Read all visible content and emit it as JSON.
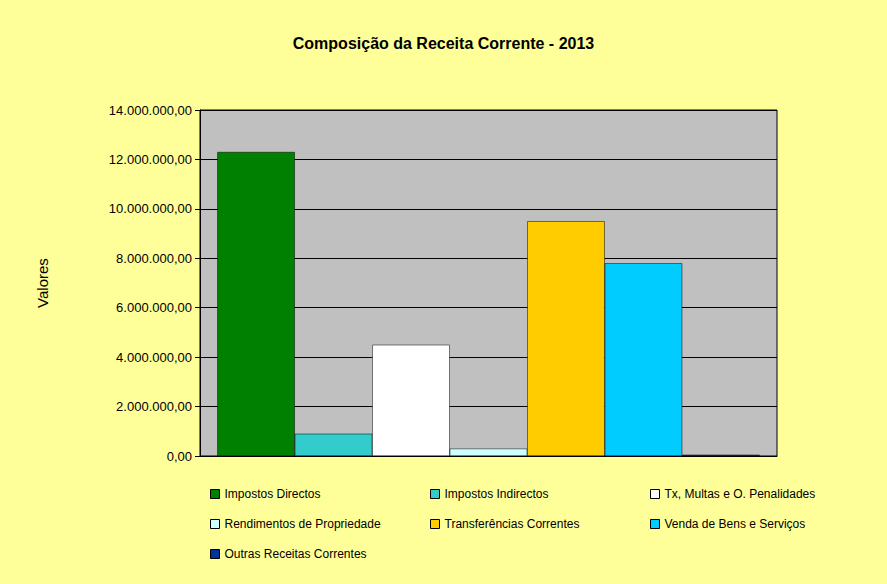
{
  "chart_data": {
    "type": "bar",
    "title": "Composição da Receita Corrente - 2013",
    "y_label": "Valores",
    "categories": [
      null
    ],
    "series": [
      {
        "name": "Impostos Directos",
        "color": "#008000",
        "values": [
          12300000
        ]
      },
      {
        "name": "Impostos Indirectos",
        "color": "#33CCCC",
        "values": [
          900000
        ]
      },
      {
        "name": "Tx, Multas e O. Penalidades",
        "color": "#FFFFFF",
        "values": [
          4500000
        ]
      },
      {
        "name": "Rendimentos de Propriedade",
        "color": "#CCFFFF",
        "values": [
          300000
        ]
      },
      {
        "name": "Transferências Correntes",
        "color": "#FFCC00",
        "values": [
          9500000
        ]
      },
      {
        "name": "Venda de Bens e Serviços",
        "color": "#00CCFF",
        "values": [
          7800000
        ]
      },
      {
        "name": "Outras Receitas Correntes",
        "color": "#003399",
        "values": [
          50000
        ]
      }
    ],
    "ylim": [
      0,
      14000000
    ],
    "yticks": [
      {
        "value": 0,
        "label": "0,00"
      },
      {
        "value": 2000000,
        "label": "2.000.000,00"
      },
      {
        "value": 4000000,
        "label": "4.000.000,00"
      },
      {
        "value": 6000000,
        "label": "6.000.000,00"
      },
      {
        "value": 8000000,
        "label": "8.000.000,00"
      },
      {
        "value": 10000000,
        "label": "10.000.000,00"
      },
      {
        "value": 12000000,
        "label": "12.000.000,00"
      },
      {
        "value": 14000000,
        "label": "14.000.000,00"
      }
    ],
    "grid": true,
    "legend": "bottom",
    "tick_labels": "y"
  }
}
